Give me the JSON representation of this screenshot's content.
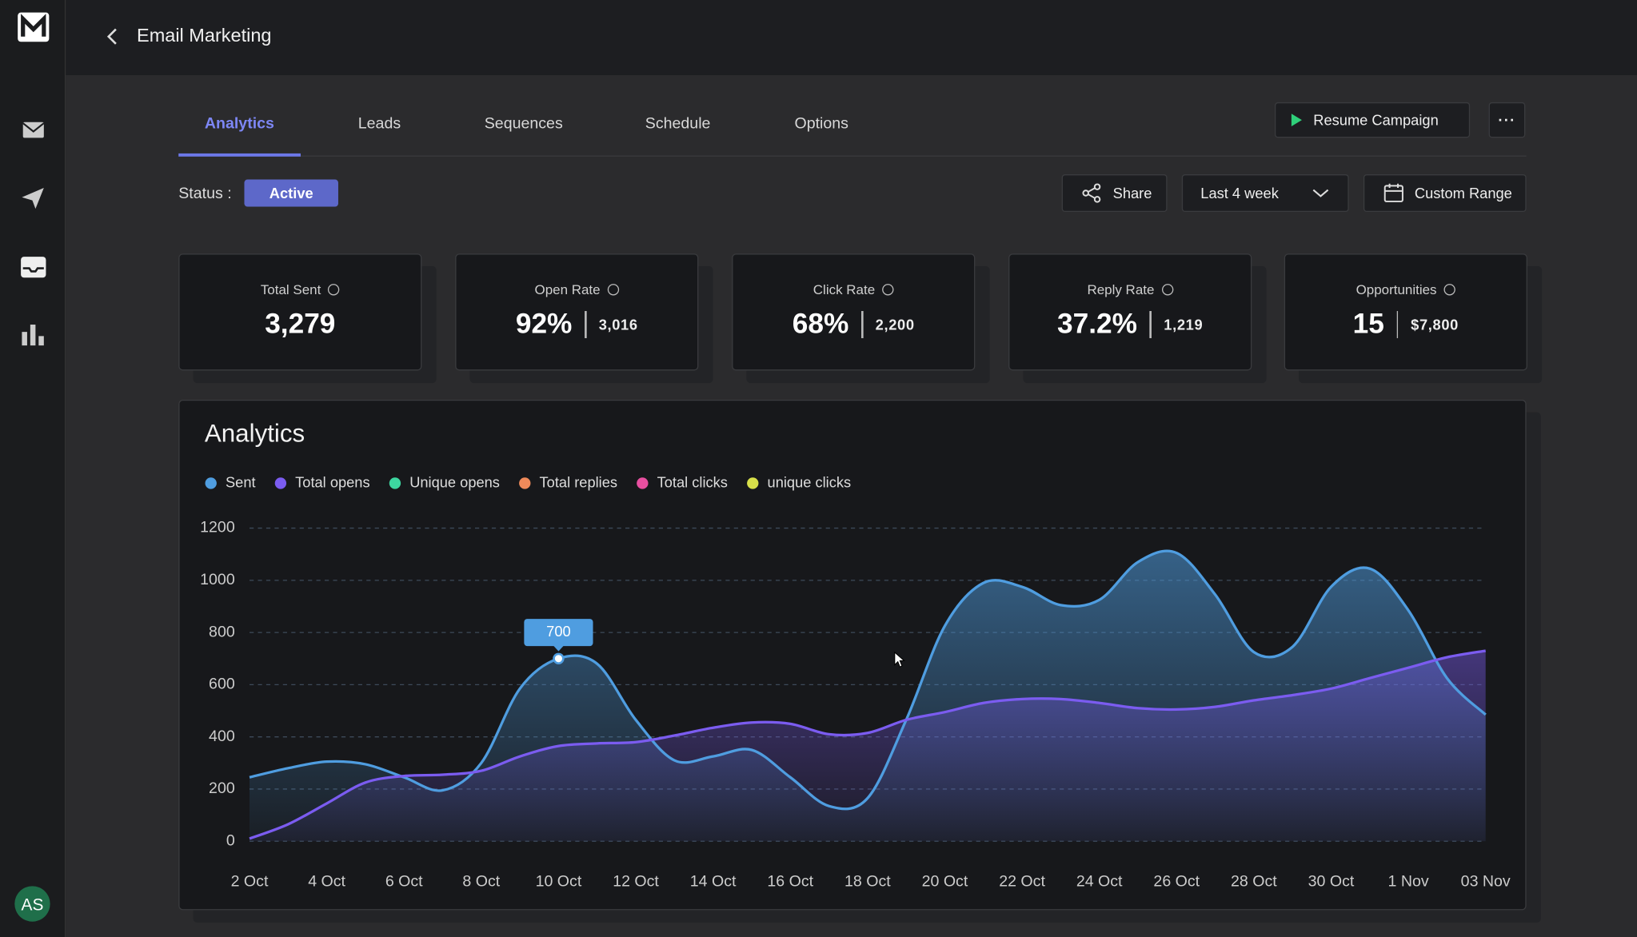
{
  "header": {
    "title": "Email Marketing"
  },
  "tabs": [
    "Analytics",
    "Leads",
    "Sequences",
    "Schedule",
    "Options"
  ],
  "actions": {
    "resume": "Resume Campaign"
  },
  "status": {
    "label": "Status :",
    "value": "Active"
  },
  "filters": {
    "share": "Share",
    "range": "Last 4 week",
    "custom": "Custom Range"
  },
  "stats": [
    {
      "label": "Total Sent",
      "value": "3,279"
    },
    {
      "label": "Open Rate",
      "value": "92%",
      "count": "3,016"
    },
    {
      "label": "Click Rate",
      "value": "68%",
      "count": "2,200"
    },
    {
      "label": "Reply Rate",
      "value": "37.2%",
      "count": "1,219"
    },
    {
      "label": "Opportunities",
      "value": "15",
      "count": "$7,800"
    }
  ],
  "user": {
    "initials": "AS"
  },
  "chart_data": {
    "type": "area",
    "title": "Analytics",
    "categories": [
      "2 Oct",
      null,
      "4 Oct",
      null,
      "6 Oct",
      null,
      "8 Oct",
      null,
      "10 Oct",
      null,
      "12 Oct",
      null,
      "14 Oct",
      null,
      "16 Oct",
      null,
      "18 Oct",
      null,
      "20 Oct",
      null,
      "22 Oct",
      null,
      "24 Oct",
      null,
      "26 Oct",
      null,
      "28 Oct",
      null,
      "30 Oct",
      null,
      "1 Nov",
      null,
      "03 Nov"
    ],
    "series": [
      {
        "name": "Sent",
        "color": "#4f9de0",
        "values": [
          245,
          280,
          305,
          295,
          245,
          195,
          300,
          585,
          700,
          680,
          465,
          310,
          325,
          350,
          245,
          135,
          165,
          465,
          825,
          990,
          975,
          905,
          925,
          1070,
          1105,
          945,
          725,
          745,
          975,
          1045,
          885,
          625,
          485
        ],
        "value_labels": [
          null,
          null,
          null,
          null,
          null,
          null,
          null,
          null,
          "700",
          null,
          null,
          null,
          null,
          null,
          null,
          null,
          null,
          null,
          null,
          null,
          null,
          null,
          null,
          null,
          null,
          null,
          null,
          null,
          null,
          null,
          null,
          null,
          null
        ]
      },
      {
        "name": "Total opens",
        "color": "#7b5cf0",
        "values": [
          10,
          65,
          145,
          225,
          250,
          255,
          270,
          325,
          365,
          375,
          380,
          405,
          435,
          455,
          450,
          410,
          415,
          465,
          495,
          530,
          545,
          545,
          530,
          510,
          505,
          515,
          540,
          560,
          585,
          625,
          665,
          705,
          730
        ]
      },
      {
        "name": "Unique opens",
        "color": "#3dd6a0"
      },
      {
        "name": "Total replies",
        "color": "#f08a5a"
      },
      {
        "name": "Total clicks",
        "color": "#e84fa0"
      },
      {
        "name": "unique clicks",
        "color": "#d8e04a"
      }
    ],
    "ylim": [
      0,
      1200
    ],
    "yticks": [
      0,
      200,
      400,
      600,
      800,
      1000,
      1200
    ],
    "grid": true
  }
}
